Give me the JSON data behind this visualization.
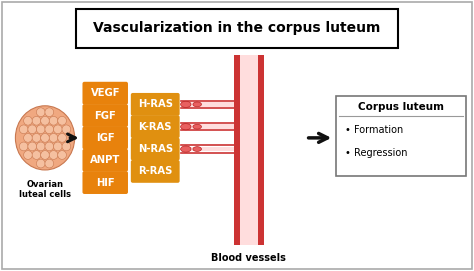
{
  "title": "Vascularization in the corpus luteum",
  "title_fontsize": 10,
  "bg_color": "#ffffff",
  "left_labels": [
    "VEGF",
    "FGF",
    "IGF",
    "ANPT",
    "HIF"
  ],
  "right_labels": [
    "H-RAS",
    "K-RAS",
    "N-RAS",
    "R-RAS"
  ],
  "left_box_color": "#E8820C",
  "right_box_color": "#E09010",
  "cell_label": "Ovarian\nluteal cells",
  "vessel_label": "Blood vessels",
  "corpus_label": "Corpus luteum",
  "corpus_items": [
    "Formation",
    "Regression"
  ],
  "cell_color": "#F0A880",
  "cell_inner_color": "#F5C0A0",
  "cell_edge_color": "#C87850",
  "vessel_line_color": "#CC3333",
  "vessel_fill_color": "#FFDDDD",
  "arrow_color": "#111111"
}
